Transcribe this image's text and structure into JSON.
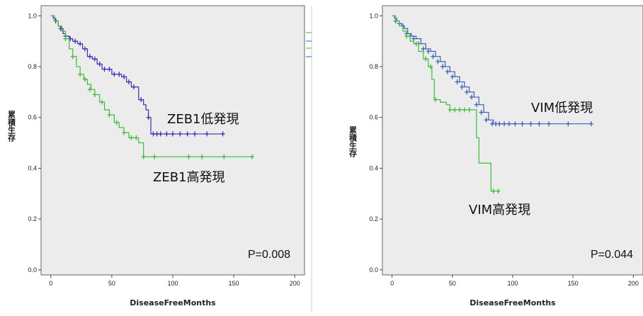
{
  "chart_data": [
    {
      "type": "line",
      "subtype": "kaplan-meier",
      "title": "",
      "xlabel": "DiseaseFreeMonths",
      "ylabel": "累積生存",
      "xlim": [
        -8,
        208
      ],
      "ylim": [
        -0.02,
        1.04
      ],
      "xticks": [
        0,
        50,
        100,
        150,
        200
      ],
      "yticks": [
        0.0,
        0.2,
        0.4,
        0.6,
        0.8,
        1.0
      ],
      "grid": false,
      "background": "#ececec",
      "p_value": "P=0.008",
      "series": [
        {
          "name": "ZEB1低発現",
          "color": "#3a2fb0",
          "x": [
            0,
            2,
            4,
            6,
            8,
            10,
            12,
            15,
            18,
            22,
            26,
            30,
            34,
            38,
            42,
            46,
            50,
            54,
            58,
            62,
            66,
            70,
            72,
            76,
            78,
            80,
            82,
            141
          ],
          "y": [
            1.0,
            0.99,
            0.98,
            0.96,
            0.95,
            0.93,
            0.92,
            0.91,
            0.9,
            0.89,
            0.87,
            0.84,
            0.83,
            0.81,
            0.79,
            0.79,
            0.77,
            0.77,
            0.76,
            0.74,
            0.72,
            0.72,
            0.67,
            0.65,
            0.63,
            0.6,
            0.535,
            0.535
          ],
          "censored": [
            [
              4,
              0.98
            ],
            [
              8,
              0.95
            ],
            [
              12,
              0.92
            ],
            [
              16,
              0.91
            ],
            [
              20,
              0.9
            ],
            [
              24,
              0.89
            ],
            [
              28,
              0.87
            ],
            [
              32,
              0.84
            ],
            [
              36,
              0.83
            ],
            [
              40,
              0.81
            ],
            [
              44,
              0.79
            ],
            [
              48,
              0.79
            ],
            [
              52,
              0.77
            ],
            [
              56,
              0.77
            ],
            [
              60,
              0.76
            ],
            [
              64,
              0.74
            ],
            [
              68,
              0.72
            ],
            [
              74,
              0.67
            ],
            [
              80,
              0.6
            ],
            [
              84,
              0.535
            ],
            [
              87,
              0.535
            ],
            [
              90,
              0.535
            ],
            [
              95,
              0.535
            ],
            [
              100,
              0.535
            ],
            [
              106,
              0.535
            ],
            [
              112,
              0.535
            ],
            [
              118,
              0.535
            ],
            [
              128,
              0.535
            ],
            [
              141,
              0.535
            ]
          ],
          "label": "ZEB1低発現"
        },
        {
          "name": "ZEB1高発現",
          "color": "#3dbb3d",
          "x": [
            0,
            3,
            6,
            9,
            12,
            15,
            18,
            21,
            24,
            27,
            30,
            33,
            36,
            40,
            44,
            48,
            52,
            56,
            60,
            64,
            68,
            72,
            76,
            80,
            165
          ],
          "y": [
            1.0,
            0.98,
            0.96,
            0.94,
            0.91,
            0.87,
            0.84,
            0.8,
            0.77,
            0.75,
            0.73,
            0.71,
            0.69,
            0.66,
            0.63,
            0.61,
            0.58,
            0.56,
            0.54,
            0.52,
            0.52,
            0.5,
            0.445,
            0.445,
            0.445
          ],
          "censored": [
            [
              12,
              0.91
            ],
            [
              18,
              0.84
            ],
            [
              24,
              0.77
            ],
            [
              28,
              0.75
            ],
            [
              32,
              0.71
            ],
            [
              36,
              0.69
            ],
            [
              42,
              0.66
            ],
            [
              48,
              0.61
            ],
            [
              54,
              0.58
            ],
            [
              60,
              0.54
            ],
            [
              66,
              0.52
            ],
            [
              70,
              0.52
            ],
            [
              76,
              0.445
            ],
            [
              85,
              0.445
            ],
            [
              113,
              0.445
            ],
            [
              124,
              0.445
            ],
            [
              142,
              0.445
            ],
            [
              165,
              0.445
            ]
          ],
          "label": "ZEB1高発現"
        }
      ]
    },
    {
      "type": "line",
      "subtype": "kaplan-meier",
      "title": "",
      "xlabel": "DiseaseFreeMonths",
      "ylabel": "累積生存",
      "xlim": [
        -8,
        208
      ],
      "ylim": [
        -0.02,
        1.04
      ],
      "xticks": [
        0,
        50,
        100,
        150,
        200
      ],
      "yticks": [
        0.0,
        0.2,
        0.4,
        0.6,
        0.8,
        1.0
      ],
      "grid": false,
      "background": "#ececec",
      "p_value": "P=0.044",
      "series": [
        {
          "name": "VIM低発現",
          "color": "#3e5fb0",
          "x": [
            0,
            2,
            4,
            6,
            8,
            10,
            13,
            16,
            20,
            24,
            28,
            32,
            36,
            40,
            44,
            48,
            52,
            56,
            60,
            64,
            68,
            72,
            76,
            80,
            84,
            165
          ],
          "y": [
            1.0,
            0.99,
            0.98,
            0.97,
            0.96,
            0.95,
            0.93,
            0.92,
            0.91,
            0.89,
            0.87,
            0.86,
            0.84,
            0.82,
            0.8,
            0.78,
            0.76,
            0.74,
            0.72,
            0.7,
            0.68,
            0.65,
            0.62,
            0.59,
            0.575,
            0.575
          ],
          "censored": [
            [
              3,
              0.98
            ],
            [
              6,
              0.97
            ],
            [
              9,
              0.96
            ],
            [
              12,
              0.93
            ],
            [
              15,
              0.92
            ],
            [
              18,
              0.91
            ],
            [
              22,
              0.89
            ],
            [
              26,
              0.87
            ],
            [
              30,
              0.86
            ],
            [
              34,
              0.84
            ],
            [
              38,
              0.82
            ],
            [
              42,
              0.8
            ],
            [
              46,
              0.78
            ],
            [
              50,
              0.76
            ],
            [
              54,
              0.74
            ],
            [
              58,
              0.72
            ],
            [
              62,
              0.7
            ],
            [
              66,
              0.68
            ],
            [
              70,
              0.65
            ],
            [
              74,
              0.62
            ],
            [
              78,
              0.59
            ],
            [
              83,
              0.575
            ],
            [
              86,
              0.575
            ],
            [
              89,
              0.575
            ],
            [
              93,
              0.575
            ],
            [
              97,
              0.575
            ],
            [
              102,
              0.575
            ],
            [
              108,
              0.575
            ],
            [
              115,
              0.575
            ],
            [
              122,
              0.575
            ],
            [
              130,
              0.575
            ],
            [
              146,
              0.575
            ],
            [
              165,
              0.575
            ]
          ],
          "label": "VIM低発現"
        },
        {
          "name": "VIM高発現",
          "color": "#3dbb3d",
          "x": [
            0,
            3,
            6,
            9,
            12,
            15,
            18,
            22,
            26,
            30,
            33,
            35,
            40,
            45,
            48,
            70,
            72,
            82,
            88
          ],
          "y": [
            1.0,
            0.98,
            0.96,
            0.94,
            0.92,
            0.9,
            0.89,
            0.86,
            0.83,
            0.8,
            0.75,
            0.67,
            0.66,
            0.65,
            0.63,
            0.52,
            0.42,
            0.31,
            0.31
          ],
          "censored": [
            [
              12,
              0.92
            ],
            [
              20,
              0.89
            ],
            [
              28,
              0.83
            ],
            [
              32,
              0.8
            ],
            [
              36,
              0.67
            ],
            [
              48,
              0.63
            ],
            [
              52,
              0.63
            ],
            [
              56,
              0.63
            ],
            [
              60,
              0.63
            ],
            [
              64,
              0.63
            ],
            [
              84,
              0.31
            ],
            [
              88,
              0.31
            ]
          ],
          "label": "VIM高発現"
        }
      ]
    }
  ]
}
